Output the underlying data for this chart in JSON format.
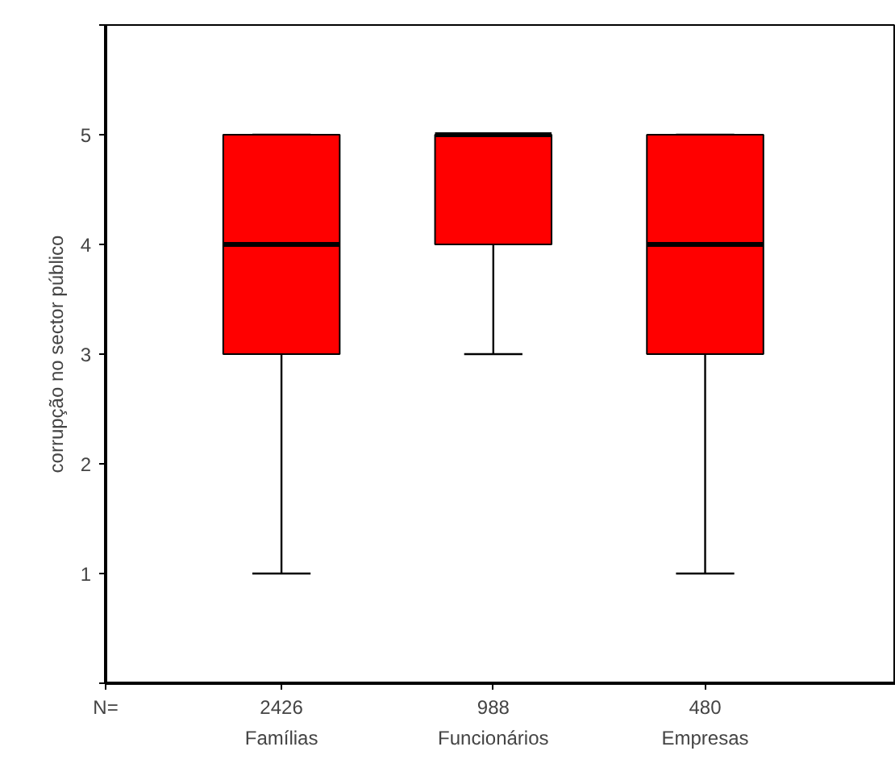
{
  "chart_data": {
    "type": "box",
    "ylabel": "corrupção no sector público",
    "categories": [
      "Famílias",
      "Funcionários",
      "Empresas"
    ],
    "boxes": [
      {
        "low": 1,
        "q1": 3,
        "median": 4,
        "q3": 5,
        "high": 5
      },
      {
        "low": 3,
        "q1": 4,
        "median": 5,
        "q3": 5,
        "high": 5
      },
      {
        "low": 1,
        "q1": 3,
        "median": 4,
        "q3": 5,
        "high": 5
      }
    ],
    "color": "#ff0000",
    "ylim": [
      0,
      6
    ],
    "yticks": [
      {
        "value": 0,
        "label": null
      },
      1,
      2,
      3,
      4,
      5,
      {
        "value": 6,
        "label": null
      }
    ],
    "grid": false,
    "annotations": [
      "N=",
      "2426",
      "988",
      "480"
    ]
  }
}
